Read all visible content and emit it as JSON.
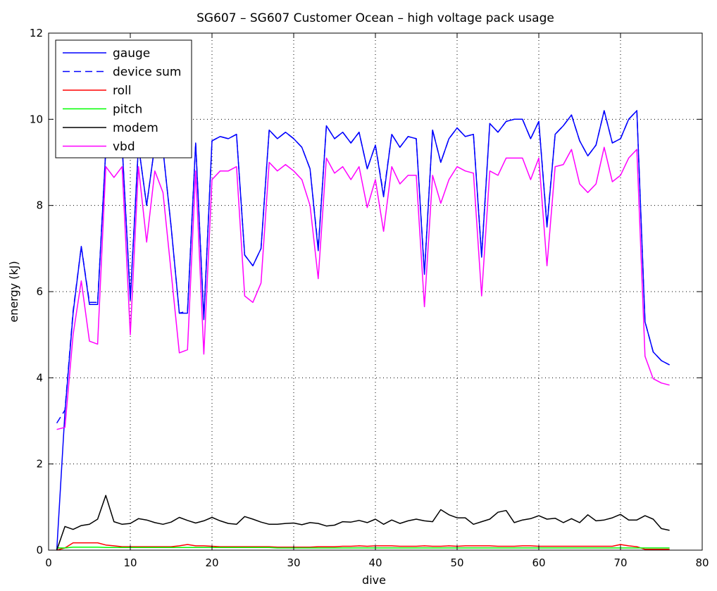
{
  "chart_data": {
    "type": "line",
    "title": "SG607 – SG607 Customer Ocean – high voltage pack usage",
    "xlabel": "dive",
    "ylabel": "energy (kJ)",
    "xlim": [
      0,
      80
    ],
    "ylim": [
      0,
      12
    ],
    "xticks": [
      0,
      10,
      20,
      30,
      40,
      50,
      60,
      70,
      80
    ],
    "yticks": [
      0,
      2,
      4,
      6,
      8,
      10,
      12
    ],
    "grid": true,
    "legend": "top-left",
    "x": [
      1,
      2,
      3,
      4,
      5,
      6,
      7,
      8,
      9,
      10,
      11,
      12,
      13,
      14,
      15,
      16,
      17,
      18,
      19,
      20,
      21,
      22,
      23,
      24,
      25,
      26,
      27,
      28,
      29,
      30,
      31,
      32,
      33,
      34,
      35,
      36,
      37,
      38,
      39,
      40,
      41,
      42,
      43,
      44,
      45,
      46,
      47,
      48,
      49,
      50,
      51,
      52,
      53,
      54,
      55,
      56,
      57,
      58,
      59,
      60,
      61,
      62,
      63,
      64,
      65,
      66,
      67,
      68,
      69,
      70,
      71,
      72,
      73,
      74,
      75,
      76
    ],
    "series": [
      {
        "name": "gauge",
        "color": "#0000ff",
        "style": "solid",
        "values": [
          0.0,
          3.2,
          5.5,
          7.05,
          5.7,
          5.7,
          9.3,
          9.4,
          9.4,
          5.8,
          9.4,
          8.0,
          9.4,
          9.3,
          7.5,
          5.5,
          5.5,
          9.45,
          5.35,
          9.5,
          9.6,
          9.55,
          9.65,
          6.85,
          6.6,
          7.0,
          9.75,
          9.55,
          9.7,
          9.55,
          9.35,
          8.85,
          6.95,
          9.85,
          9.55,
          9.7,
          9.45,
          9.7,
          8.85,
          9.4,
          8.2,
          9.65,
          9.35,
          9.6,
          9.55,
          6.4,
          9.75,
          9.0,
          9.55,
          9.8,
          9.6,
          9.65,
          6.8,
          9.9,
          9.7,
          9.95,
          10.0,
          10.0,
          9.55,
          9.95,
          7.5,
          9.65,
          9.85,
          10.1,
          9.5,
          9.15,
          9.4,
          10.2,
          9.45,
          9.55,
          10.0,
          10.2,
          5.3,
          4.6,
          4.4,
          4.3
        ]
      },
      {
        "name": "device sum",
        "color": "#0000ff",
        "style": "dashed",
        "values": [
          2.95,
          3.25,
          5.55,
          7.05,
          5.75,
          5.75,
          9.3,
          9.4,
          9.4,
          5.85,
          9.4,
          8.0,
          9.4,
          9.3,
          7.5,
          5.5,
          5.55,
          9.45,
          5.4,
          9.5,
          9.6,
          9.55,
          9.65,
          6.85,
          6.6,
          7.0,
          9.75,
          9.55,
          9.7,
          9.55,
          9.35,
          8.85,
          7.0,
          9.85,
          9.55,
          9.7,
          9.45,
          9.7,
          8.85,
          9.4,
          8.25,
          9.65,
          9.35,
          9.6,
          9.55,
          6.45,
          9.75,
          9.0,
          9.55,
          9.8,
          9.6,
          9.65,
          6.85,
          9.9,
          9.7,
          9.95,
          10.0,
          10.0,
          9.55,
          9.95,
          7.55,
          9.65,
          9.85,
          10.1,
          9.5,
          9.15,
          9.4,
          10.2,
          9.45,
          9.55,
          10.0,
          10.2,
          5.3,
          4.6,
          4.4,
          4.3
        ]
      },
      {
        "name": "roll",
        "color": "#ff0000",
        "style": "solid",
        "values": [
          0.0,
          0.05,
          0.17,
          0.17,
          0.17,
          0.17,
          0.12,
          0.1,
          0.08,
          0.08,
          0.08,
          0.08,
          0.08,
          0.08,
          0.08,
          0.1,
          0.13,
          0.1,
          0.1,
          0.09,
          0.08,
          0.08,
          0.08,
          0.08,
          0.08,
          0.08,
          0.08,
          0.07,
          0.07,
          0.07,
          0.07,
          0.07,
          0.08,
          0.08,
          0.08,
          0.09,
          0.09,
          0.1,
          0.09,
          0.1,
          0.1,
          0.1,
          0.09,
          0.09,
          0.09,
          0.1,
          0.09,
          0.09,
          0.1,
          0.09,
          0.1,
          0.1,
          0.1,
          0.1,
          0.09,
          0.09,
          0.09,
          0.1,
          0.1,
          0.09,
          0.09,
          0.09,
          0.09,
          0.09,
          0.09,
          0.09,
          0.09,
          0.09,
          0.09,
          0.13,
          0.1,
          0.08,
          0.02,
          0.02,
          0.02,
          0.02
        ]
      },
      {
        "name": "pitch",
        "color": "#00ff00",
        "style": "solid",
        "values": [
          0.05,
          0.05,
          0.07,
          0.07,
          0.07,
          0.07,
          0.06,
          0.06,
          0.06,
          0.06,
          0.06,
          0.06,
          0.06,
          0.06,
          0.06,
          0.06,
          0.06,
          0.06,
          0.06,
          0.06,
          0.06,
          0.06,
          0.06,
          0.06,
          0.06,
          0.06,
          0.06,
          0.05,
          0.05,
          0.05,
          0.05,
          0.05,
          0.05,
          0.05,
          0.05,
          0.05,
          0.05,
          0.05,
          0.05,
          0.05,
          0.05,
          0.05,
          0.05,
          0.05,
          0.05,
          0.05,
          0.05,
          0.05,
          0.05,
          0.05,
          0.05,
          0.05,
          0.05,
          0.05,
          0.05,
          0.05,
          0.05,
          0.05,
          0.05,
          0.05,
          0.05,
          0.05,
          0.05,
          0.05,
          0.05,
          0.05,
          0.05,
          0.05,
          0.05,
          0.05,
          0.05,
          0.05,
          0.05,
          0.05,
          0.05,
          0.05
        ]
      },
      {
        "name": "modem",
        "color": "#000000",
        "style": "solid",
        "values": [
          0.0,
          0.55,
          0.48,
          0.57,
          0.6,
          0.72,
          1.27,
          0.66,
          0.6,
          0.62,
          0.73,
          0.7,
          0.64,
          0.6,
          0.65,
          0.76,
          0.69,
          0.63,
          0.68,
          0.76,
          0.68,
          0.62,
          0.6,
          0.78,
          0.72,
          0.65,
          0.6,
          0.6,
          0.62,
          0.63,
          0.59,
          0.64,
          0.62,
          0.56,
          0.58,
          0.66,
          0.65,
          0.69,
          0.64,
          0.72,
          0.6,
          0.7,
          0.62,
          0.68,
          0.72,
          0.68,
          0.66,
          0.94,
          0.82,
          0.75,
          0.75,
          0.6,
          0.66,
          0.72,
          0.88,
          0.92,
          0.64,
          0.7,
          0.73,
          0.8,
          0.72,
          0.74,
          0.64,
          0.73,
          0.64,
          0.82,
          0.68,
          0.7,
          0.75,
          0.83,
          0.7,
          0.7,
          0.8,
          0.72,
          0.5,
          0.46
        ]
      },
      {
        "name": "vbd",
        "color": "#ff00ff",
        "style": "solid",
        "values": [
          2.8,
          2.85,
          5.0,
          6.25,
          4.85,
          4.78,
          8.9,
          8.65,
          8.9,
          5.0,
          8.9,
          7.15,
          8.8,
          8.3,
          6.45,
          4.58,
          4.65,
          8.8,
          4.55,
          8.6,
          8.8,
          8.8,
          8.9,
          5.9,
          5.75,
          6.2,
          9.0,
          8.8,
          8.95,
          8.8,
          8.6,
          8.0,
          6.3,
          9.1,
          8.75,
          8.9,
          8.6,
          8.9,
          7.95,
          8.6,
          7.4,
          8.9,
          8.5,
          8.7,
          8.7,
          5.65,
          8.7,
          8.05,
          8.6,
          8.9,
          8.8,
          8.75,
          5.9,
          8.8,
          8.7,
          9.1,
          9.1,
          9.1,
          8.6,
          9.1,
          6.6,
          8.9,
          8.95,
          9.3,
          8.5,
          8.3,
          8.5,
          9.35,
          8.55,
          8.7,
          9.1,
          9.3,
          4.5,
          3.98,
          3.88,
          3.83
        ]
      }
    ]
  }
}
